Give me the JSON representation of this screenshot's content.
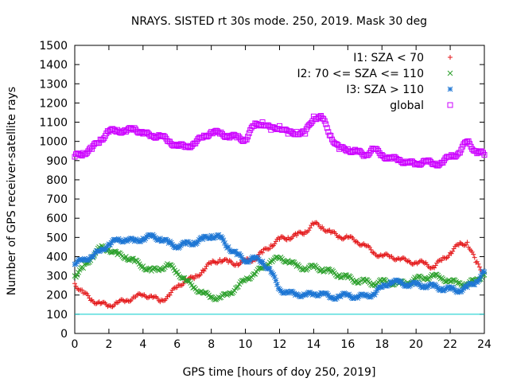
{
  "chart_data": {
    "type": "scatter",
    "title": "NRAYS. SISTED rt 30s mode. 250, 2019. Mask 30 deg",
    "xlabel": "GPS time [hours of doy 250, 2019]",
    "ylabel": "Number of GPS receiver-satellite rays",
    "xlim": [
      0,
      24
    ],
    "ylim": [
      0,
      1500
    ],
    "xticks": [
      0,
      2,
      4,
      6,
      8,
      10,
      12,
      14,
      16,
      18,
      20,
      22,
      24
    ],
    "yticks": [
      0,
      100,
      200,
      300,
      400,
      500,
      600,
      700,
      800,
      900,
      1000,
      1100,
      1200,
      1300,
      1400,
      1500
    ],
    "grid": false,
    "legend_position": "top-right",
    "reference_line": {
      "y": 100,
      "color": "#00cccc"
    },
    "series": [
      {
        "name": "I1: SZA < 70",
        "marker": "plus",
        "color": "#e41a1c",
        "x": [
          0.0,
          0.5,
          1.0,
          1.5,
          2.0,
          2.5,
          3.0,
          3.5,
          4.0,
          4.5,
          5.0,
          5.5,
          6.0,
          6.5,
          7.0,
          7.5,
          8.0,
          8.5,
          9.0,
          9.5,
          10.0,
          10.5,
          11.0,
          11.5,
          12.0,
          12.5,
          13.0,
          13.5,
          14.0,
          14.5,
          15.0,
          15.5,
          16.0,
          16.5,
          17.0,
          17.5,
          18.0,
          18.5,
          19.0,
          19.5,
          20.0,
          20.5,
          21.0,
          21.5,
          22.0,
          22.5,
          23.0,
          23.5,
          24.0
        ],
        "y": [
          260,
          210,
          175,
          155,
          145,
          160,
          170,
          190,
          200,
          195,
          165,
          200,
          240,
          280,
          285,
          330,
          365,
          385,
          370,
          365,
          375,
          390,
          420,
          460,
          490,
          500,
          510,
          530,
          570,
          555,
          525,
          505,
          500,
          480,
          460,
          420,
          405,
          400,
          390,
          375,
          370,
          365,
          345,
          380,
          420,
          460,
          475,
          370,
          315
        ]
      },
      {
        "name": "I2: 70 <= SZA <= 110",
        "marker": "cross",
        "color": "#2ca02c",
        "x": [
          0.0,
          0.5,
          1.0,
          1.5,
          2.0,
          2.5,
          3.0,
          3.5,
          4.0,
          4.5,
          5.0,
          5.5,
          6.0,
          6.5,
          7.0,
          7.5,
          8.0,
          8.5,
          9.0,
          9.5,
          10.0,
          10.5,
          11.0,
          11.5,
          12.0,
          12.5,
          13.0,
          13.5,
          14.0,
          14.5,
          15.0,
          15.5,
          16.0,
          16.5,
          17.0,
          17.5,
          18.0,
          18.5,
          19.0,
          19.5,
          20.0,
          20.5,
          21.0,
          21.5,
          22.0,
          22.5,
          23.0,
          23.5,
          24.0
        ],
        "y": [
          300,
          340,
          400,
          445,
          440,
          410,
          400,
          375,
          350,
          325,
          340,
          355,
          320,
          275,
          240,
          210,
          190,
          185,
          205,
          240,
          280,
          310,
          340,
          380,
          390,
          380,
          350,
          340,
          345,
          335,
          320,
          305,
          290,
          275,
          270,
          260,
          270,
          265,
          260,
          265,
          285,
          290,
          300,
          290,
          270,
          265,
          255,
          280,
          305
        ]
      },
      {
        "name": "I3: SZA > 110",
        "marker": "star",
        "color": "#1f77d4",
        "x": [
          0.0,
          0.5,
          1.0,
          1.5,
          2.0,
          2.5,
          3.0,
          3.5,
          4.0,
          4.5,
          5.0,
          5.5,
          6.0,
          6.5,
          7.0,
          7.5,
          8.0,
          8.5,
          9.0,
          9.5,
          10.0,
          10.5,
          11.0,
          11.5,
          12.0,
          12.5,
          13.0,
          13.5,
          14.0,
          14.5,
          15.0,
          15.5,
          16.0,
          16.5,
          17.0,
          17.5,
          18.0,
          18.5,
          19.0,
          19.5,
          20.0,
          20.5,
          21.0,
          21.5,
          22.0,
          22.5,
          23.0,
          23.5,
          24.0
        ],
        "y": [
          360,
          385,
          400,
          430,
          465,
          485,
          490,
          480,
          495,
          505,
          495,
          470,
          455,
          465,
          475,
          490,
          510,
          500,
          450,
          410,
          380,
          390,
          375,
          320,
          230,
          210,
          205,
          200,
          205,
          210,
          185,
          195,
          200,
          190,
          195,
          205,
          240,
          270,
          265,
          255,
          255,
          250,
          245,
          235,
          230,
          225,
          240,
          270,
          320
        ]
      },
      {
        "name": "global",
        "marker": "square",
        "color": "#cc00ff",
        "x": [
          0.0,
          0.5,
          1.0,
          1.5,
          2.0,
          2.5,
          3.0,
          3.5,
          4.0,
          4.5,
          5.0,
          5.5,
          6.0,
          6.5,
          7.0,
          7.5,
          8.0,
          8.5,
          9.0,
          9.5,
          10.0,
          10.5,
          11.0,
          11.5,
          12.0,
          12.5,
          13.0,
          13.5,
          14.0,
          14.5,
          15.0,
          15.5,
          16.0,
          16.5,
          17.0,
          17.5,
          18.0,
          18.5,
          19.0,
          19.5,
          20.0,
          20.5,
          21.0,
          21.5,
          22.0,
          22.5,
          23.0,
          23.5,
          24.0
        ],
        "y": [
          920,
          940,
          960,
          1010,
          1050,
          1060,
          1050,
          1070,
          1040,
          1030,
          1030,
          1000,
          980,
          970,
          990,
          1020,
          1050,
          1040,
          1030,
          1020,
          1010,
          1080,
          1100,
          1060,
          1080,
          1040,
          1050,
          1040,
          1130,
          1120,
          1030,
          960,
          960,
          945,
          930,
          960,
          930,
          910,
          905,
          890,
          880,
          900,
          880,
          890,
          920,
          940,
          1000,
          950,
          930
        ]
      }
    ]
  }
}
